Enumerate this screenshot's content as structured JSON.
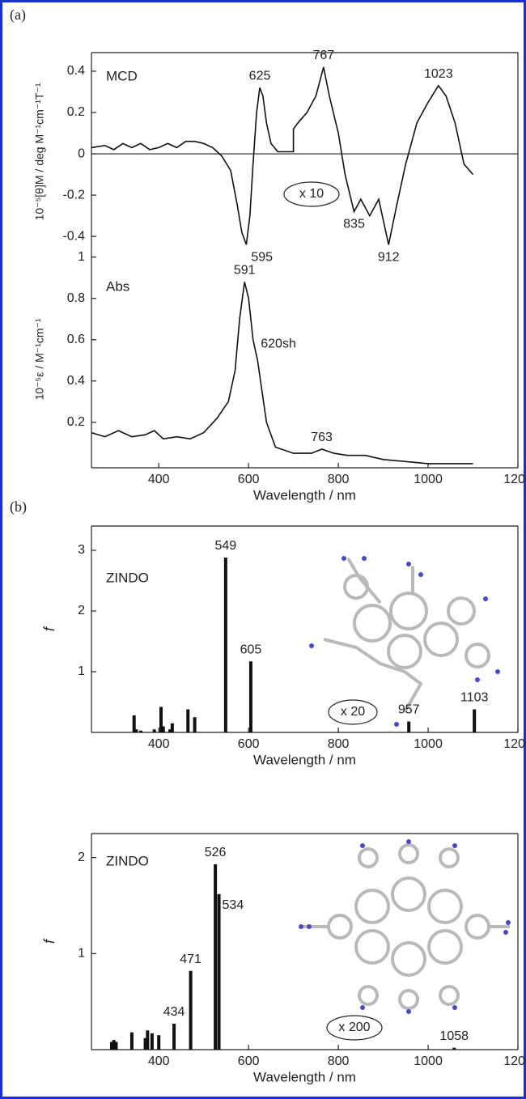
{
  "chart_data": [
    {
      "type": "line",
      "panel": "(a)",
      "label": "MCD",
      "ylabel": "10⁻⁵[θ]M / deg M⁻¹cm⁻¹T⁻¹",
      "color": "#111111",
      "x": [
        250,
        280,
        300,
        320,
        340,
        360,
        380,
        400,
        420,
        440,
        460,
        480,
        500,
        520,
        540,
        560,
        575,
        585,
        595,
        603,
        610,
        618,
        625,
        632,
        640,
        650,
        665,
        690,
        700,
        700,
        710,
        730,
        750,
        767,
        780,
        800,
        815,
        835,
        850,
        870,
        890,
        912,
        930,
        950,
        975,
        1000,
        1023,
        1040,
        1060,
        1080,
        1100
      ],
      "values": [
        0.03,
        0.04,
        0.02,
        0.05,
        0.03,
        0.05,
        0.02,
        0.03,
        0.05,
        0.03,
        0.06,
        0.06,
        0.05,
        0.03,
        -0.01,
        -0.08,
        -0.25,
        -0.38,
        -0.44,
        -0.3,
        -0.05,
        0.2,
        0.32,
        0.28,
        0.15,
        0.05,
        0.01,
        0.01,
        0.01,
        0.12,
        0.15,
        0.2,
        0.28,
        0.42,
        0.28,
        0.1,
        -0.1,
        -0.28,
        -0.22,
        -0.3,
        -0.22,
        -0.44,
        -0.25,
        -0.05,
        0.15,
        0.25,
        0.33,
        0.28,
        0.15,
        -0.05,
        -0.1
      ],
      "xlim": [
        250,
        1200
      ],
      "ylim": [
        -0.47,
        0.49
      ],
      "yticks": [
        -0.4,
        -0.2,
        0,
        0.2,
        0.4
      ],
      "peak_labels": [
        625,
        767,
        1023,
        595,
        835,
        912
      ],
      "annotation": "x 10"
    },
    {
      "type": "line",
      "label": "Abs",
      "ylabel": "10⁻⁵ε / M⁻¹cm⁻¹",
      "xlabel": "Wavelength / nm",
      "color": "#111111",
      "x": [
        250,
        280,
        310,
        340,
        370,
        390,
        410,
        440,
        470,
        500,
        530,
        555,
        570,
        580,
        591,
        600,
        610,
        620,
        630,
        640,
        660,
        700,
        740,
        763,
        790,
        820,
        860,
        900,
        950,
        1000,
        1050,
        1100
      ],
      "values": [
        0.15,
        0.13,
        0.16,
        0.13,
        0.14,
        0.16,
        0.12,
        0.13,
        0.12,
        0.15,
        0.22,
        0.3,
        0.45,
        0.7,
        0.88,
        0.8,
        0.6,
        0.5,
        0.35,
        0.2,
        0.08,
        0.05,
        0.05,
        0.07,
        0.05,
        0.04,
        0.04,
        0.02,
        0.01,
        0,
        0,
        0
      ],
      "xlim": [
        250,
        1200
      ],
      "ylim": [
        -0.02,
        1.03
      ],
      "yticks": [
        0.2,
        0.4,
        0.6,
        0.8,
        1
      ],
      "xticks": [
        400,
        600,
        800,
        1000,
        1200
      ],
      "peak_labels": [
        591,
        "620sh",
        763
      ]
    },
    {
      "type": "bar",
      "panel": "(b)",
      "label": "ZINDO",
      "ylabel": "f",
      "xlabel": "Wavelength / nm",
      "color": "#111111",
      "x": [
        345,
        350,
        360,
        390,
        405,
        410,
        425,
        430,
        465,
        480,
        549,
        605,
        957,
        1103
      ],
      "values": [
        0.28,
        0.05,
        0.03,
        0.05,
        0.42,
        0.1,
        0.05,
        0.15,
        0.38,
        0.25,
        2.88,
        1.17,
        0.18,
        0.38
      ],
      "xlim": [
        250,
        1200
      ],
      "ylim": [
        0,
        3.4
      ],
      "yticks": [
        1,
        2,
        3
      ],
      "xticks": [
        400,
        600,
        800,
        1000,
        1200
      ],
      "peak_labels": [
        549,
        605,
        957,
        1103
      ],
      "annotation": "x 20"
    },
    {
      "type": "bar",
      "label": "ZINDO",
      "ylabel": "f",
      "xlabel": "Wavelength / nm",
      "color": "#111111",
      "x": [
        295,
        300,
        305,
        340,
        370,
        375,
        385,
        400,
        434,
        471,
        526,
        534,
        1058
      ],
      "values": [
        0.08,
        0.1,
        0.08,
        0.18,
        0.12,
        0.2,
        0.17,
        0.15,
        0.27,
        0.82,
        1.93,
        1.62,
        0.02
      ],
      "xlim": [
        250,
        1200
      ],
      "ylim": [
        0,
        2.25
      ],
      "yticks": [
        1,
        2
      ],
      "xticks": [
        400,
        600,
        800,
        1000,
        1200
      ],
      "peak_labels": [
        434,
        471,
        526,
        534,
        1058
      ],
      "annotation": "x 200"
    }
  ]
}
